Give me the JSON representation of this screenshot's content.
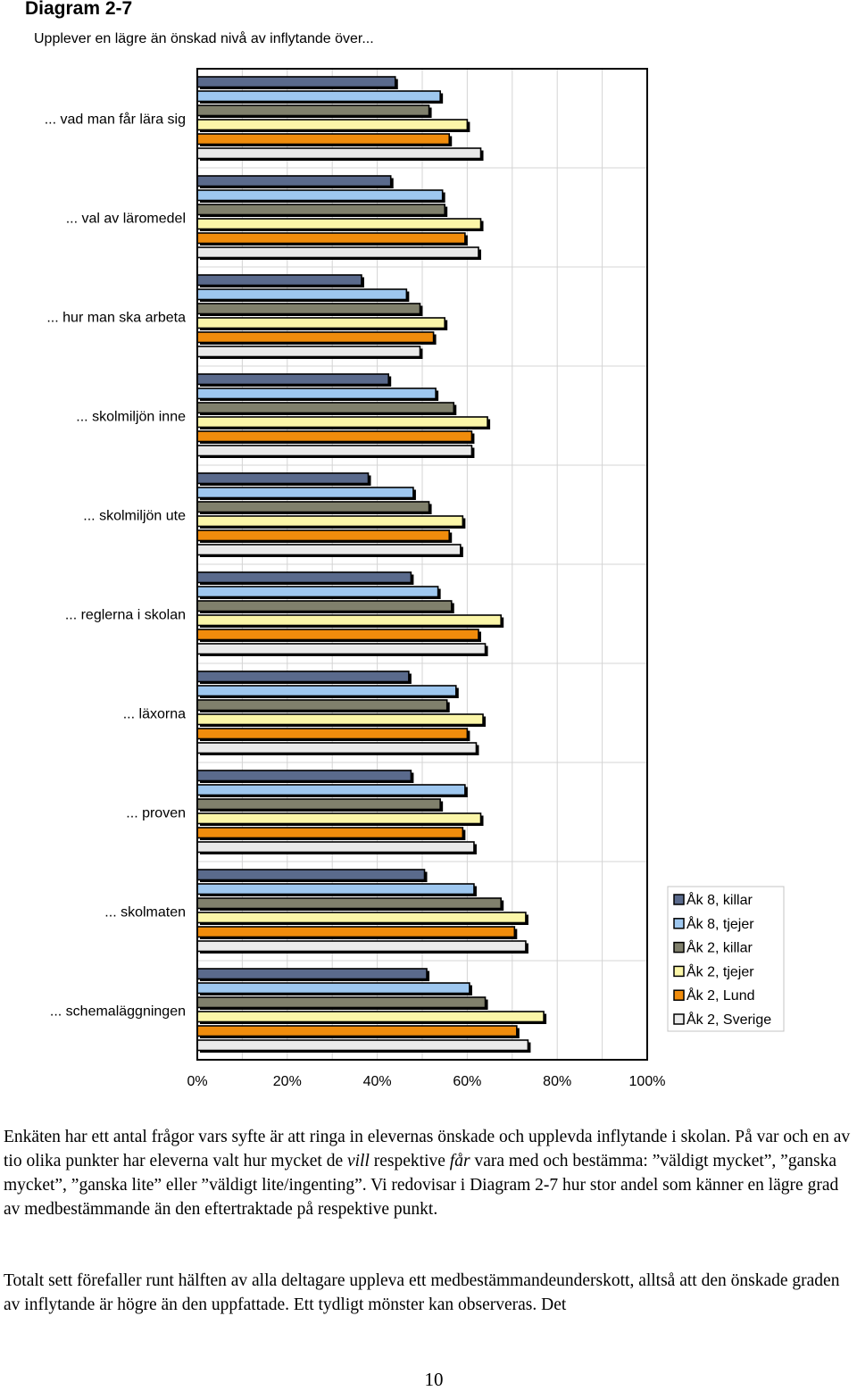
{
  "page": {
    "diagram_label": "Diagram 2-7",
    "paragraph1": [
      {
        "t": "Enkäten har ett antal frågor vars syfte är att ringa in elevernas önskade och upplevda inflytande i skolan. På var och en av tio olika punkter har eleverna valt hur mycket de "
      },
      {
        "t": "vill",
        "i": true
      },
      {
        "t": " respektive "
      },
      {
        "t": "får",
        "i": true
      },
      {
        "t": " vara med och bestämma: ”väldigt mycket”, ”ganska mycket”, ”ganska lite” eller ”väldigt lite/ingenting”. Vi redovisar i Diagram 2-7 hur stor andel som känner en lägre grad av medbestämmande än den eftertraktade på respektive punkt."
      }
    ],
    "paragraph2": "Totalt sett förefaller runt hälften av alla deltagare uppleva ett medbestämmandeunderskott, alltså att den önskade graden av inflytande är högre än den uppfattade. Ett tydligt mönster kan observeras. Det",
    "page_number": "10"
  },
  "chart_data": {
    "type": "bar",
    "orientation": "horizontal",
    "title": "Upplever en lägre än önskad nivå av inflytande över...",
    "xlabel": "",
    "ylabel": "",
    "xlim": [
      0,
      100
    ],
    "xticks": [
      "0%",
      "20%",
      "40%",
      "60%",
      "80%",
      "100%"
    ],
    "grid": true,
    "legend_position": "right",
    "categories": [
      "... vad man får lära sig",
      "... val av läromedel",
      "... hur man ska arbeta",
      "... skolmiljön inne",
      "... skolmiljön ute",
      "... reglerna i skolan",
      "... läxorna",
      "... proven",
      "... skolmaten",
      "... schemaläggningen"
    ],
    "series": [
      {
        "name": "Åk 8, killar",
        "color": "#5a6a8c",
        "values": [
          44,
          43,
          36.5,
          42.5,
          38,
          47.5,
          47,
          47.5,
          50.5,
          51
        ]
      },
      {
        "name": "Åk 8, tjejer",
        "color": "#9ec7ef",
        "values": [
          54,
          54.5,
          46.5,
          53,
          48,
          53.5,
          57.5,
          59.5,
          61.5,
          60.5
        ]
      },
      {
        "name": "Åk 2, killar",
        "color": "#80806c",
        "values": [
          51.5,
          55,
          49.5,
          57,
          51.5,
          56.5,
          55.5,
          54,
          67.5,
          64
        ]
      },
      {
        "name": "Åk 2, tjejer",
        "color": "#fbf6a8",
        "values": [
          60,
          63,
          55,
          64.5,
          59,
          67.5,
          63.5,
          63,
          73,
          77
        ]
      },
      {
        "name": "Åk 2, Lund",
        "color": "#f08c0c",
        "values": [
          56,
          59.5,
          52.5,
          61,
          56,
          62.5,
          60,
          59,
          70.5,
          71
        ]
      },
      {
        "name": "Åk 2, Sverige",
        "color": "#eaeaea",
        "values": [
          63,
          62.5,
          49.5,
          61,
          58.5,
          64,
          62,
          61.5,
          73,
          73.5
        ]
      }
    ]
  }
}
